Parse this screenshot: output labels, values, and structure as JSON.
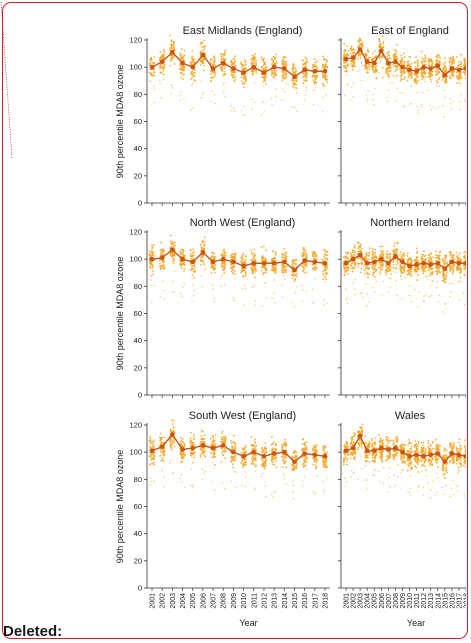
{
  "page": {
    "deleted_label": "Deleted:"
  },
  "colors": {
    "scatter": "#f5a623",
    "scatter_light": "#f9c66b",
    "line": "#c8561b",
    "axis": "#333333",
    "border": "#d02030"
  },
  "chart_data": [
    {
      "type": "line",
      "title": "East Midlands (England)",
      "ylabel": "90th percentile MDA8 ozone",
      "xlabel": "",
      "x": [
        2001,
        2002,
        2003,
        2004,
        2005,
        2006,
        2007,
        2008,
        2009,
        2010,
        2011,
        2012,
        2013,
        2014,
        2015,
        2016,
        2017,
        2018
      ],
      "series": [
        {
          "values": [
            100,
            104,
            111,
            103,
            100,
            109,
            99,
            103,
            99,
            96,
            100,
            96,
            100,
            99,
            93,
            98,
            97,
            97
          ]
        }
      ],
      "ylim": [
        0,
        120
      ],
      "yticks": [
        0,
        20,
        40,
        60,
        80,
        100,
        120
      ],
      "show_xticks": false
    },
    {
      "type": "line",
      "title": "East of England",
      "x": [
        2001,
        2002,
        2003,
        2004,
        2005,
        2006,
        2007,
        2008,
        2009,
        2010,
        2011,
        2012,
        2013,
        2014,
        2015,
        2016,
        2017,
        2018
      ],
      "series": [
        {
          "values": [
            106,
            107,
            113,
            104,
            103,
            112,
            103,
            104,
            100,
            98,
            97,
            100,
            99,
            101,
            94,
            99,
            98,
            99
          ]
        }
      ],
      "ylim": [
        0,
        120
      ],
      "show_xticks": false
    },
    {
      "type": "line",
      "title": "North West (England)",
      "ylabel": "90th percentile MDA8 ozone",
      "xlabel": "",
      "x": [
        2001,
        2002,
        2003,
        2004,
        2005,
        2006,
        2007,
        2008,
        2009,
        2010,
        2011,
        2012,
        2013,
        2014,
        2015,
        2016,
        2017,
        2018
      ],
      "series": [
        {
          "values": [
            100,
            101,
            107,
            100,
            98,
            105,
            98,
            100,
            98,
            95,
            97,
            97,
            97,
            98,
            92,
            99,
            98,
            97
          ]
        }
      ],
      "ylim": [
        0,
        120
      ],
      "yticks": [
        0,
        20,
        40,
        60,
        80,
        100,
        120
      ],
      "show_xticks": false
    },
    {
      "type": "line",
      "title": "Northern Ireland",
      "x": [
        2001,
        2002,
        2003,
        2004,
        2005,
        2006,
        2007,
        2008,
        2009,
        2010,
        2011,
        2012,
        2013,
        2014,
        2015,
        2016,
        2017,
        2018
      ],
      "series": [
        {
          "values": [
            97,
            100,
            103,
            97,
            98,
            100,
            97,
            102,
            98,
            95,
            96,
            97,
            96,
            97,
            93,
            98,
            97,
            97
          ]
        }
      ],
      "ylim": [
        0,
        120
      ],
      "show_xticks": false
    },
    {
      "type": "line",
      "title": "South West (England)",
      "ylabel": "90th percentile MDA8 ozone",
      "xlabel": "Year",
      "x": [
        2001,
        2002,
        2003,
        2004,
        2005,
        2006,
        2007,
        2008,
        2009,
        2010,
        2011,
        2012,
        2013,
        2014,
        2015,
        2016,
        2017,
        2018
      ],
      "series": [
        {
          "values": [
            101,
            104,
            113,
            102,
            103,
            105,
            103,
            105,
            100,
            97,
            100,
            97,
            99,
            100,
            93,
            99,
            98,
            97
          ]
        }
      ],
      "ylim": [
        0,
        120
      ],
      "yticks": [
        0,
        20,
        40,
        60,
        80,
        100,
        120
      ],
      "show_xticks": true
    },
    {
      "type": "line",
      "title": "Wales",
      "xlabel": "Year",
      "x": [
        2001,
        2002,
        2003,
        2004,
        2005,
        2006,
        2007,
        2008,
        2009,
        2010,
        2011,
        2012,
        2013,
        2014,
        2015,
        2016,
        2017,
        2018
      ],
      "series": [
        {
          "values": [
            101,
            103,
            112,
            101,
            101,
            103,
            102,
            103,
            100,
            97,
            98,
            97,
            98,
            99,
            93,
            99,
            98,
            97
          ]
        }
      ],
      "ylim": [
        0,
        120
      ],
      "show_xticks": true
    }
  ]
}
